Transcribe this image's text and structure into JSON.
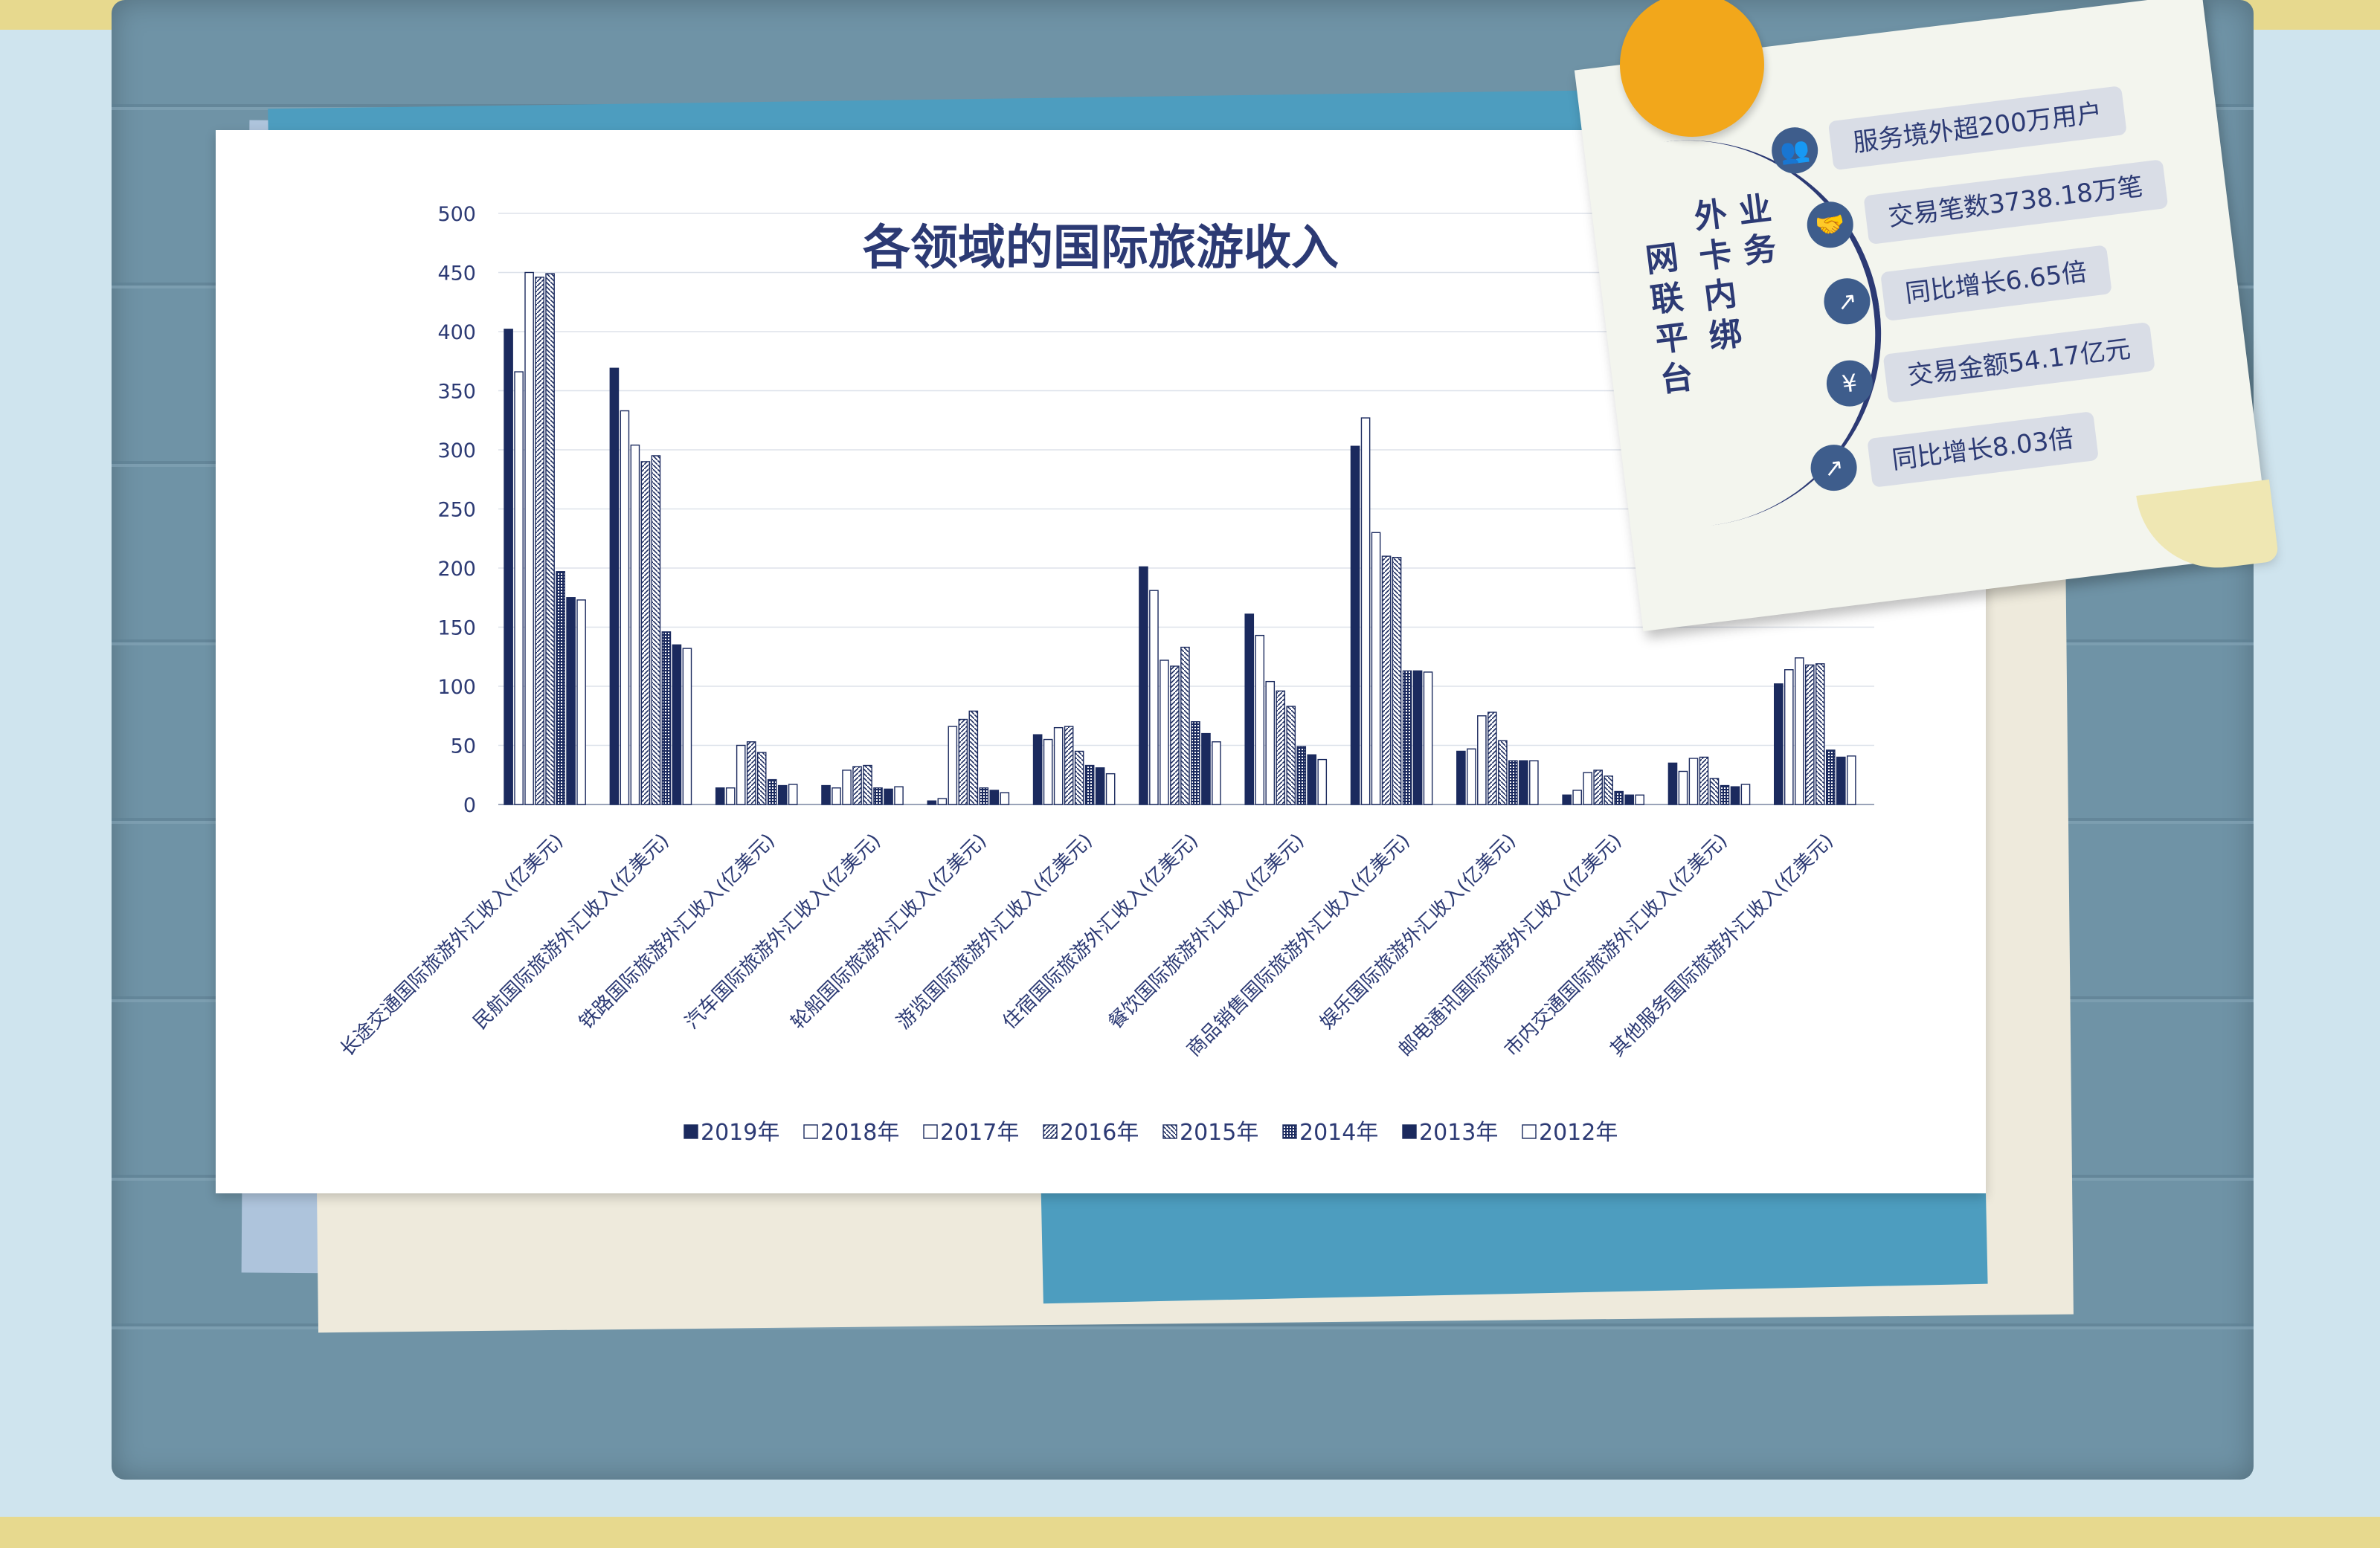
{
  "chart_data": {
    "type": "bar",
    "title": "各领域的国际旅游收入",
    "xlabel": "",
    "ylabel": "",
    "ylim": [
      0,
      500
    ],
    "yticks": [
      0,
      50,
      100,
      150,
      200,
      250,
      300,
      350,
      400,
      450,
      500
    ],
    "grid": true,
    "legend_position": "bottom",
    "categories": [
      "长途交通国际旅游外汇收入(亿美元)",
      "民航国际旅游外汇收入(亿美元)",
      "铁路国际旅游外汇收入(亿美元)",
      "汽车国际旅游外汇收入(亿美元)",
      "轮船国际旅游外汇收入(亿美元)",
      "游览国际旅游外汇收入(亿美元)",
      "住宿国际旅游外汇收入(亿美元)",
      "餐饮国际旅游外汇收入(亿美元)",
      "商品销售国际旅游外汇收入(亿美元)",
      "娱乐国际旅游外汇收入(亿美元)",
      "邮电通讯国际旅游外汇收入(亿美元)",
      "市内交通国际旅游外汇收入(亿美元)",
      "其他服务国际旅游外汇收入(亿美元)"
    ],
    "series": [
      {
        "name": "2019年",
        "values": [
          402,
          369,
          14,
          16,
          3,
          59,
          201,
          161,
          303,
          45,
          8,
          35,
          102
        ]
      },
      {
        "name": "2018年",
        "values": [
          366,
          333,
          14,
          14,
          5,
          55,
          181,
          143,
          327,
          47,
          12,
          28,
          114
        ]
      },
      {
        "name": "2017年",
        "values": [
          450,
          304,
          50,
          29,
          66,
          65,
          122,
          104,
          230,
          75,
          27,
          39,
          124
        ]
      },
      {
        "name": "2016年",
        "values": [
          446,
          290,
          53,
          32,
          72,
          66,
          117,
          96,
          210,
          78,
          29,
          40,
          118
        ]
      },
      {
        "name": "2015年",
        "values": [
          449,
          295,
          44,
          33,
          79,
          45,
          133,
          83,
          209,
          54,
          24,
          22,
          119
        ]
      },
      {
        "name": "2014年",
        "values": [
          197,
          146,
          21,
          14,
          14,
          33,
          70,
          49,
          113,
          37,
          11,
          16,
          46
        ]
      },
      {
        "name": "2013年",
        "values": [
          175,
          135,
          16,
          13,
          12,
          31,
          60,
          42,
          113,
          37,
          8,
          15,
          40
        ]
      },
      {
        "name": "2012年",
        "values": [
          173,
          132,
          17,
          15,
          10,
          26,
          53,
          38,
          112,
          37,
          8,
          17,
          41
        ]
      }
    ],
    "colors": [
      "#1b2a5e",
      "#3d4c82",
      "#3d4c82",
      "#1b2a5e",
      "#1b2a5e",
      "#1b2a5e",
      "#1b2a5e",
      "#3d4c82"
    ]
  },
  "note": {
    "side_title_col1": "网联平台",
    "side_title_col2": "外卡内绑",
    "side_title_col3": "业务",
    "items": [
      {
        "icon": "users-icon",
        "text": "服务境外超200万用户"
      },
      {
        "icon": "handshake-icon",
        "text": "交易笔数3738.18万笔"
      },
      {
        "icon": "growth-chart-icon",
        "text": "同比增长6.65倍"
      },
      {
        "icon": "yuan-coin-icon",
        "text": "交易金额54.17亿元"
      },
      {
        "icon": "growth-chart-icon",
        "text": "同比增长8.03倍"
      }
    ]
  },
  "colors": {
    "background": "#cfe4ee",
    "board": "#6f93a6",
    "accent_yellow": "#f2a71b",
    "ink": "#1b2a5e"
  }
}
